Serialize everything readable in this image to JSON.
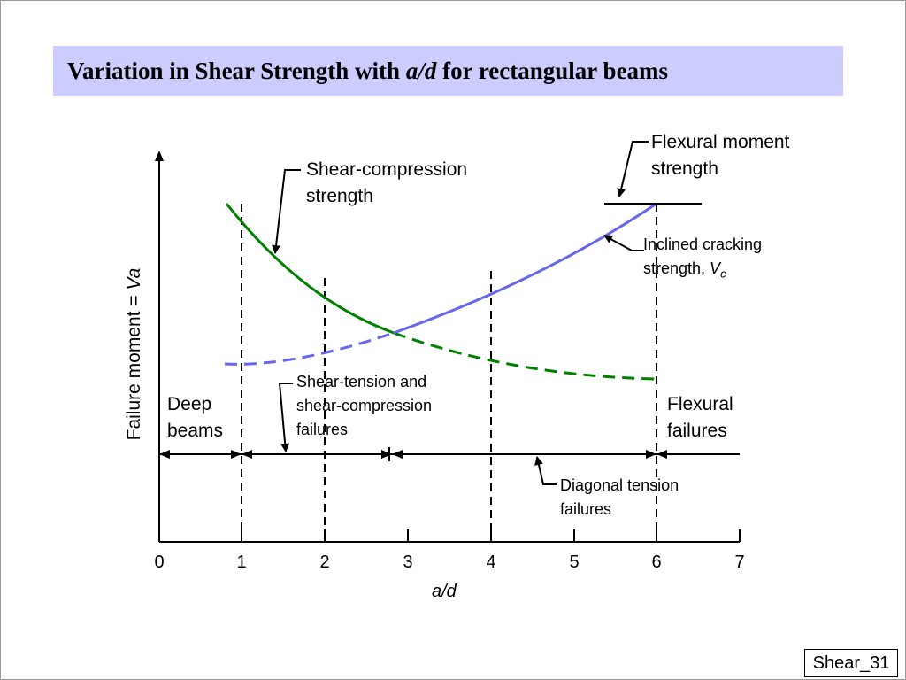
{
  "slide": {
    "title_part1": "Variation in Shear Strength with ",
    "title_italic": "a/d",
    "title_part2": "  for rectangular beams",
    "slide_number": "Shear_31"
  },
  "chart_data": {
    "type": "line",
    "xlabel": "a/d",
    "ylabel_prefix": "Failure moment = ",
    "ylabel_italic": "Va",
    "x_ticks": [
      "0",
      "1",
      "2",
      "3",
      "4",
      "5",
      "6",
      "7"
    ],
    "xlim": [
      0,
      7
    ],
    "y_ticks_shown": false,
    "series": [
      {
        "name": "Shear-compression strength",
        "color": "#008000"
      },
      {
        "name": "Inclined cracking strength, Vc",
        "color": "#6666ee"
      },
      {
        "name": "Flexural moment strength",
        "color": "#000000"
      }
    ],
    "vertical_dashed_lines_at": [
      1,
      2,
      4,
      6
    ],
    "regions": [
      {
        "label": "Deep beams",
        "from": 0,
        "to": 1
      },
      {
        "label": "Shear-tension and shear-compression failures",
        "from": 1,
        "to": 2.8
      },
      {
        "label": "Diagonal tension failures",
        "from": 2.8,
        "to": 6
      },
      {
        "label": "Flexural failures",
        "from": 6,
        "to": 7
      }
    ]
  },
  "annotations": {
    "flexural_line1": "Flexural moment",
    "flexural_line2": "strength",
    "shear_comp_line1": "Shear-compression",
    "shear_comp_line2": "strength",
    "inclined_line1": "Inclined cracking",
    "inclined_line2": "strength, ",
    "inclined_v": "V",
    "inclined_sub": "c",
    "deep_line1": "Deep",
    "deep_line2": "beams",
    "st_line1": "Shear-tension and",
    "st_line2": "shear-compression",
    "st_line3": "failures",
    "flex_fail_line1": "Flexural",
    "flex_fail_line2": "failures",
    "diag_line1": "Diagonal tension",
    "diag_line2": "failures"
  }
}
